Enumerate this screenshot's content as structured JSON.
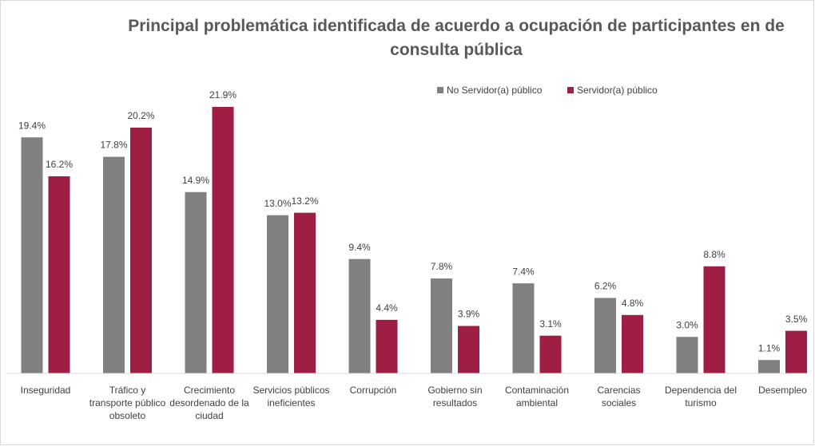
{
  "chart_data": {
    "type": "bar",
    "title": "Principal problemática identificada de acuerdo a ocupación de participantes en de consulta pública",
    "categories": [
      "Inseguridad",
      "Tráfico y transporte público obsoleto",
      "Crecimiento desordenado de la ciudad",
      "Servicios públicos ineficientes",
      "Corrupción",
      "Gobierno sin resultados",
      "Contaminación ambiental",
      "Carencias sociales",
      "Dependencia del turismo",
      "Desempleo"
    ],
    "series": [
      {
        "name": "No Servidor(a) público",
        "color": "#808080",
        "values": [
          19.4,
          17.8,
          14.9,
          13.0,
          9.4,
          7.8,
          7.4,
          6.2,
          3.0,
          1.1
        ],
        "value_labels": [
          "19.4%",
          "17.8%",
          "14.9%",
          "13.0%",
          "9.4%",
          "7.8%",
          "7.4%",
          "6.2%",
          "3.0%",
          "1.1%"
        ]
      },
      {
        "name": "Servidor(a) público",
        "color": "#9e1f43",
        "values": [
          16.2,
          20.2,
          21.9,
          13.2,
          4.4,
          3.9,
          3.1,
          4.8,
          8.8,
          3.5
        ],
        "value_labels": [
          "16.2%",
          "20.2%",
          "21.9%",
          "13.2%",
          "4.4%",
          "3.9%",
          "3.1%",
          "4.8%",
          "8.8%",
          "3.5%"
        ]
      }
    ],
    "legend": "top"
  }
}
